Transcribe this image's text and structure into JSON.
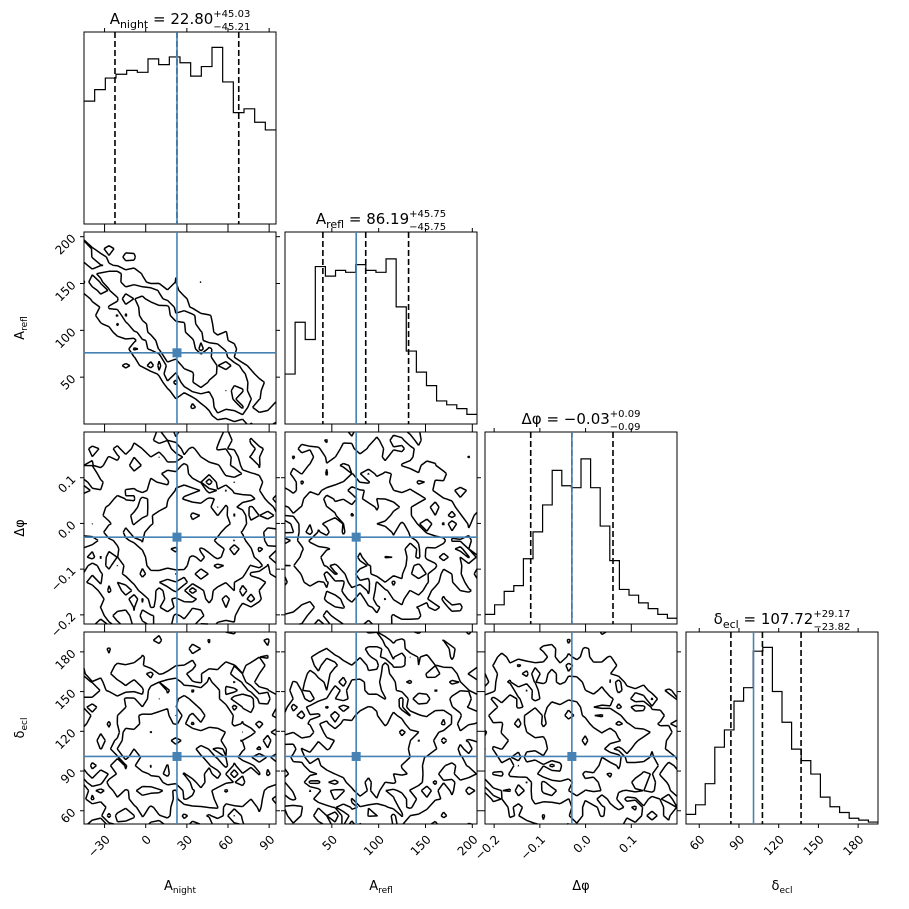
{
  "chart_data": {
    "type": "corner",
    "parameters": [
      {
        "key": "anight",
        "label_main": "A",
        "label_sub": "night",
        "range": [
          -45,
          95
        ],
        "ticks": [
          -30,
          0,
          30,
          60,
          90
        ],
        "tick_labels": [
          "−30",
          "0",
          "30",
          "60",
          "90"
        ],
        "truth": 22.8,
        "median": 22.8,
        "plus": "+45.03",
        "minus": "−45.21",
        "quantiles": [
          -22.41,
          22.8,
          67.83
        ]
      },
      {
        "key": "arefl",
        "label_main": "A",
        "label_sub": "refl",
        "range": [
          0,
          205
        ],
        "ticks": [
          50,
          100,
          150,
          200
        ],
        "tick_labels": [
          "50",
          "100",
          "150",
          "200"
        ],
        "truth": 76.0,
        "median": 86.19,
        "plus": "+45.75",
        "minus": "−45.75",
        "quantiles": [
          40.44,
          86.19,
          131.94
        ]
      },
      {
        "key": "dphi",
        "label_main": "Δφ",
        "label_sub": "",
        "range": [
          -0.22,
          0.2
        ],
        "ticks": [
          -0.2,
          -0.1,
          0.0,
          0.1
        ],
        "tick_labels": [
          "−0.2",
          "−0.1",
          "0.0",
          "0.1"
        ],
        "truth": -0.03,
        "median": -0.03,
        "plus": "+0.09",
        "minus": "−0.09",
        "quantiles": [
          -0.12,
          -0.03,
          0.06
        ]
      },
      {
        "key": "decl",
        "label_main": "δ",
        "label_sub": "ecl",
        "range": [
          50,
          195
        ],
        "ticks": [
          60,
          90,
          120,
          150,
          180
        ],
        "tick_labels": [
          "60",
          "90",
          "120",
          "150",
          "180"
        ],
        "truth": 101.0,
        "median": 107.72,
        "plus": "+29.17",
        "minus": "−23.82",
        "quantiles": [
          83.9,
          107.72,
          136.89
        ]
      }
    ],
    "titles": [
      {
        "lhs": "A",
        "sub": "night",
        "value": " = 22.80"
      },
      {
        "lhs": "A",
        "sub": "refl",
        "value": " = 86.19"
      },
      {
        "lhs": "Δφ",
        "sub": "",
        "value": " = −0.03"
      },
      {
        "lhs": "δ",
        "sub": "ecl",
        "value": " = 107.72"
      }
    ],
    "histograms": [
      [
        0.64,
        0.7,
        0.76,
        0.78,
        0.8,
        0.79,
        0.86,
        0.83,
        0.87,
        0.84,
        0.77,
        0.82,
        0.92,
        0.74,
        0.58,
        0.6,
        0.53,
        0.49
      ],
      [
        0.26,
        0.53,
        0.44,
        0.82,
        0.77,
        0.8,
        0.79,
        0.83,
        0.8,
        0.79,
        0.86,
        0.61,
        0.38,
        0.27,
        0.2,
        0.12,
        0.1,
        0.08,
        0.05
      ],
      [
        0.05,
        0.1,
        0.17,
        0.2,
        0.34,
        0.48,
        0.62,
        0.8,
        0.72,
        0.71,
        0.86,
        0.71,
        0.51,
        0.33,
        0.18,
        0.15,
        0.11,
        0.08,
        0.05,
        0.03
      ],
      [
        0.05,
        0.1,
        0.21,
        0.4,
        0.49,
        0.64,
        0.71,
        0.9,
        0.92,
        0.69,
        0.53,
        0.39,
        0.33,
        0.26,
        0.14,
        0.09,
        0.06,
        0.03,
        0.02,
        0.01
      ]
    ],
    "pairs": [
      {
        "row": 1,
        "col": 0,
        "rho": -0.85
      },
      {
        "row": 2,
        "col": 0,
        "rho": 0.0
      },
      {
        "row": 2,
        "col": 1,
        "rho": 0.0
      },
      {
        "row": 3,
        "col": 0,
        "rho": 0.1
      },
      {
        "row": 3,
        "col": 1,
        "rho": 0.15
      },
      {
        "row": 3,
        "col": 2,
        "rho": -0.2
      }
    ],
    "truth_color": "#4682b4",
    "line_color": "#000000"
  }
}
